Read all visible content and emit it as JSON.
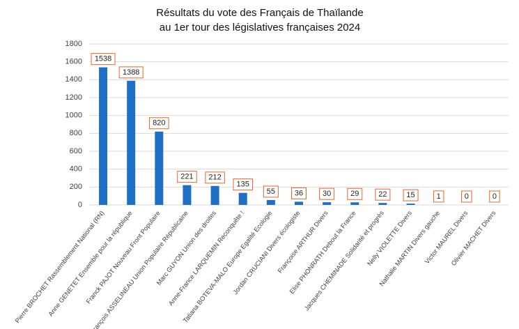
{
  "chart_data": {
    "type": "bar",
    "title": [
      "Résultats du vote des Français de Thaïlande",
      "au 1er tour des législatives françaises 2024"
    ],
    "categories": [
      "Pierre BROCHET Rassemblement National (RN)",
      "Anne GENETET Ensemble pour la république",
      "Franck PAJOT Nouveau Front Populaire",
      "François ASSELINEAU Union Populaire Républicaine",
      "Marc GUYON Union des droites",
      "Anne-France LARQUEMIN Reconquête !",
      "Tatiana BOTEVA-MALO Europe Egalité Ecologie",
      "Jordan CRUCIANI Divers écologiste",
      "Françoise ARTHUR Divers",
      "Elise PHONRATH Debout la France",
      "Jacques CHEMINADE Solidarité et progrès",
      "Nelly VIOLETTE Divers",
      "Nathalie MARTIN Divers gauche",
      "Victor MAUREL Divers",
      "Olivier MACHET Divers"
    ],
    "values": [
      1538,
      1388,
      820,
      221,
      212,
      135,
      55,
      36,
      30,
      29,
      22,
      15,
      1,
      0,
      0
    ],
    "color": "#1f6fc5",
    "label_border": "#e0672a",
    "ylim": [
      0,
      1800
    ],
    "yticks": [
      0,
      200,
      400,
      600,
      800,
      1000,
      1200,
      1400,
      1600,
      1800
    ],
    "grid": true
  }
}
